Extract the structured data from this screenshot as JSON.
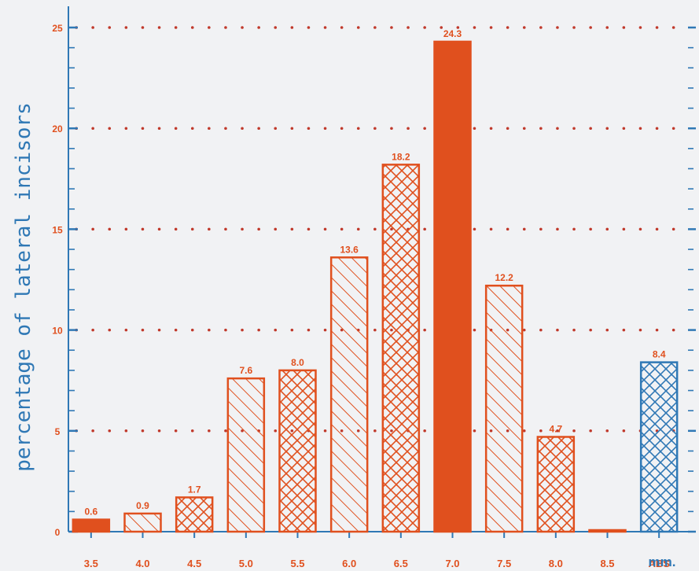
{
  "chart_data": {
    "type": "bar",
    "xlabel": "",
    "ylabel": "percentage of lateral incisors",
    "unit": "mm.",
    "ylim": [
      0,
      25
    ],
    "yticks": [
      "0",
      "5",
      "10",
      "15",
      "20",
      "25"
    ],
    "grid": "dotted horizontal",
    "categories": [
      "3.5",
      "4.0",
      "4.5",
      "5.0",
      "5.5",
      "6.0",
      "6.5",
      "7.0",
      "7.5",
      "8.0",
      "8.5",
      "ABS"
    ],
    "values": [
      0.6,
      0.9,
      1.7,
      7.6,
      8.0,
      13.6,
      18.2,
      24.3,
      12.2,
      4.7,
      0.0,
      8.4
    ],
    "value_labels": [
      "0.6",
      "0.9",
      "1.7",
      "7.6",
      "8.0",
      "13.6",
      "18.2",
      "24.3",
      "12.2",
      "4.7",
      "",
      "8.4"
    ],
    "fills": [
      "solid",
      "diagonal",
      "crosshatch",
      "diagonal",
      "crosshatch",
      "diagonal",
      "crosshatch",
      "solid",
      "diagonal",
      "crosshatch",
      "solid",
      "crosshatch"
    ],
    "colors": {
      "bar": "#e0501e",
      "abs_bar": "#2f78b5",
      "axis": "#2f78b5",
      "grid": "#c0392b",
      "label": "#e0501e",
      "ylabel": "#2f78b5"
    }
  }
}
